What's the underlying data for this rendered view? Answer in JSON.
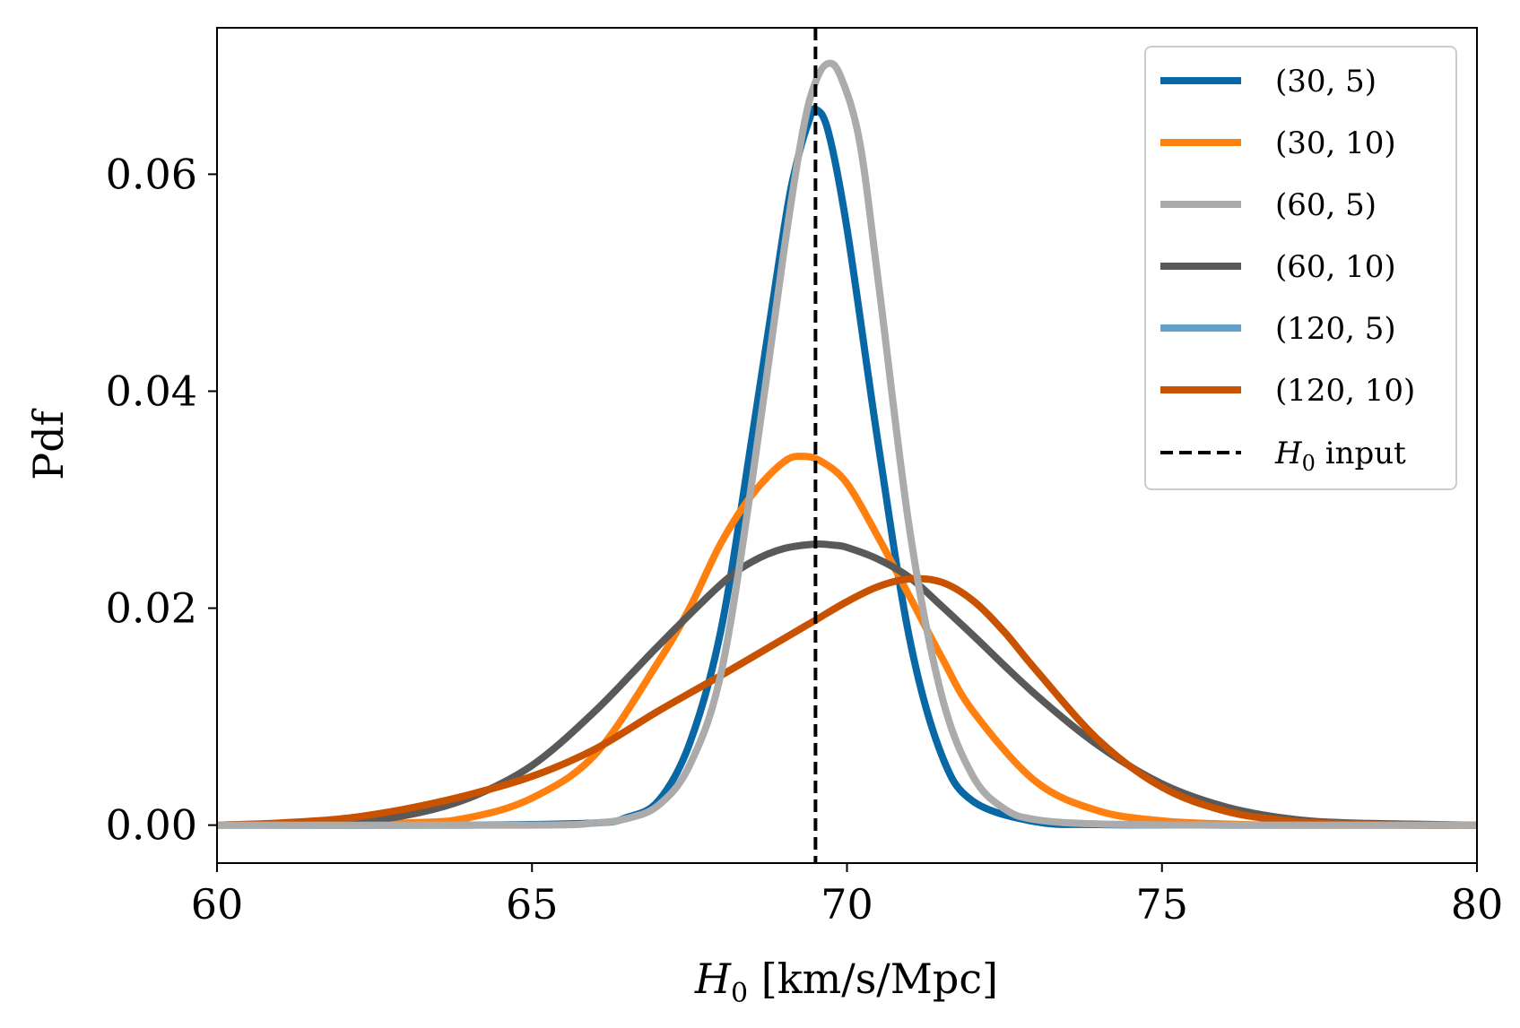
{
  "chart_data": {
    "type": "line",
    "title": "",
    "xlabel": "H0 [km/s/Mpc]",
    "ylabel": "Pdf",
    "xlim": [
      60,
      80
    ],
    "ylim": [
      -0.0035,
      0.0735
    ],
    "xticks": [
      60,
      65,
      70,
      75,
      80
    ],
    "xtick_labels": [
      "60",
      "65",
      "70",
      "75",
      "80"
    ],
    "yticks": [
      0.0,
      0.02,
      0.04,
      0.06
    ],
    "ytick_labels": [
      "0.00",
      "0.02",
      "0.04",
      "0.06"
    ],
    "grid": false,
    "legend_position": "top-right",
    "reference_line": {
      "label": "H0 input",
      "x": 69.5,
      "color": "#000000",
      "style": "dashed"
    },
    "series": [
      {
        "name": "(30, 5)",
        "color": "#0868a6",
        "x": [
          60,
          64,
          66,
          66.5,
          67,
          67.5,
          68,
          68.5,
          69,
          69.2,
          69.4,
          69.5,
          69.7,
          70,
          70.5,
          71,
          71.5,
          72,
          73,
          74,
          76,
          80
        ],
        "values": [
          0,
          0,
          0.0002,
          0.0007,
          0.0022,
          0.0075,
          0.018,
          0.036,
          0.055,
          0.061,
          0.065,
          0.066,
          0.064,
          0.055,
          0.035,
          0.017,
          0.0065,
          0.0022,
          0.0003,
          5e-05,
          0,
          0
        ]
      },
      {
        "name": "(30, 10)",
        "color": "#ff800e",
        "x": [
          60,
          63,
          64,
          65,
          66,
          67,
          67.5,
          68,
          68.5,
          69,
          69.3,
          69.6,
          70,
          70.5,
          71,
          71.5,
          72,
          73,
          74,
          75,
          76,
          77,
          80
        ],
        "values": [
          0,
          0.0002,
          0.0007,
          0.0025,
          0.0065,
          0.015,
          0.02,
          0.026,
          0.0305,
          0.0335,
          0.034,
          0.0335,
          0.0315,
          0.0265,
          0.021,
          0.0155,
          0.0105,
          0.004,
          0.0013,
          0.0004,
          0.0001,
          0,
          0
        ]
      },
      {
        "name": "(60, 5)",
        "color": "#ababab",
        "x": [
          60,
          65,
          66,
          66.5,
          67,
          67.5,
          68,
          68.5,
          69,
          69.3,
          69.5,
          69.7,
          69.9,
          70.2,
          70.5,
          71,
          71.5,
          72,
          72.5,
          73,
          74,
          76,
          80
        ],
        "values": [
          0,
          0,
          0.0002,
          0.0006,
          0.0018,
          0.0055,
          0.014,
          0.032,
          0.053,
          0.064,
          0.0685,
          0.0702,
          0.069,
          0.063,
          0.05,
          0.027,
          0.012,
          0.0045,
          0.0015,
          0.0005,
          0.0001,
          0,
          0
        ]
      },
      {
        "name": "(60, 10)",
        "color": "#595959",
        "x": [
          60,
          62,
          63,
          64,
          65,
          66,
          67,
          68,
          68.5,
          69,
          69.5,
          69.8,
          70,
          70.5,
          71,
          71.5,
          72,
          73,
          74,
          75,
          76,
          77,
          78,
          80
        ],
        "values": [
          0,
          0.0003,
          0.0009,
          0.0025,
          0.0055,
          0.0105,
          0.0165,
          0.0222,
          0.0243,
          0.0255,
          0.0259,
          0.0258,
          0.0256,
          0.0245,
          0.0228,
          0.0202,
          0.0175,
          0.012,
          0.0073,
          0.0038,
          0.0017,
          0.0006,
          0.0002,
          0
        ]
      },
      {
        "name": "(120, 5)",
        "color": "#5fa2ce",
        "x": [
          60,
          65,
          66,
          66.5,
          67,
          67.5,
          68,
          68.5,
          69,
          69.2,
          69.4,
          69.5,
          69.7,
          70,
          70.5,
          71,
          71.5,
          72,
          73,
          74,
          76,
          80
        ],
        "values": [
          0,
          0,
          0.0002,
          0.0007,
          0.0022,
          0.0075,
          0.018,
          0.036,
          0.055,
          0.061,
          0.065,
          0.066,
          0.064,
          0.055,
          0.035,
          0.017,
          0.0065,
          0.0022,
          0.0003,
          5e-05,
          0,
          0
        ]
      },
      {
        "name": "(120, 10)",
        "color": "#c85200",
        "x": [
          60,
          61,
          62,
          63,
          64,
          65,
          66,
          67,
          68,
          69,
          69.5,
          70,
          70.5,
          71,
          71.5,
          72,
          72.5,
          73,
          74,
          75,
          76,
          77,
          78,
          79,
          80
        ],
        "values": [
          0,
          0.0002,
          0.0006,
          0.0015,
          0.0028,
          0.0045,
          0.007,
          0.0105,
          0.0138,
          0.0172,
          0.0189,
          0.0206,
          0.022,
          0.0227,
          0.0224,
          0.0207,
          0.0178,
          0.0143,
          0.0078,
          0.0035,
          0.0013,
          0.0004,
          0.0001,
          0,
          0
        ]
      }
    ]
  }
}
